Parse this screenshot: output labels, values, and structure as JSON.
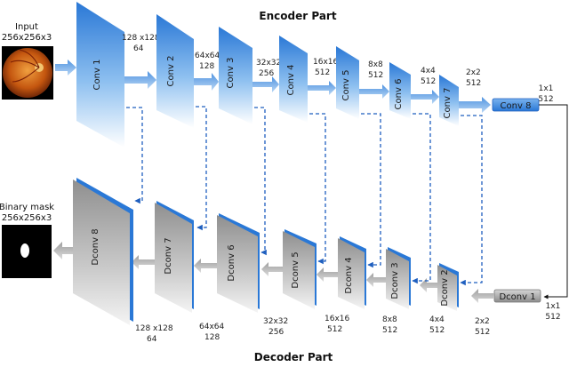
{
  "encoder_title": "Encoder Part",
  "decoder_title": "Decoder Part",
  "input": {
    "label": "Input",
    "size": "256x256x3"
  },
  "output": {
    "label": "Binary mask",
    "size": "256x256x3"
  },
  "encoder_blocks": [
    {
      "name": "Conv 1",
      "res": "128 x128",
      "ch": "64"
    },
    {
      "name": "Conv 2",
      "res": "64x64",
      "ch": "128"
    },
    {
      "name": "Conv 3",
      "res": "32x32",
      "ch": "256"
    },
    {
      "name": "Conv 4",
      "res": "16x16",
      "ch": "512"
    },
    {
      "name": "Conv 5",
      "res": "8x8",
      "ch": "512"
    },
    {
      "name": "Conv 6",
      "res": "4x4",
      "ch": "512"
    },
    {
      "name": "Conv 7",
      "res": "2x2",
      "ch": "512"
    }
  ],
  "bottleneck_encoder": {
    "name": "Conv 8",
    "res": "1x1",
    "ch": "512"
  },
  "bottleneck_decoder": {
    "name": "Dconv 1",
    "res": "1x1",
    "ch": "512"
  },
  "decoder_blocks": [
    {
      "name": "Dconv 8",
      "res": "128 x128",
      "ch": "64"
    },
    {
      "name": "Dconv 7",
      "res": "64x64",
      "ch": "128"
    },
    {
      "name": "Dconv 6",
      "res": "32x32",
      "ch": "256"
    },
    {
      "name": "Dconv 5",
      "res": "16x16",
      "ch": "512"
    },
    {
      "name": "Dconv 4",
      "res": "8x8",
      "ch": "512"
    },
    {
      "name": "Dconv 3",
      "res": "4x4",
      "ch": "512"
    },
    {
      "name": "Dconv 2",
      "res": "2x2",
      "ch": "512"
    }
  ],
  "colors": {
    "encoder_top": "#2a78d6",
    "encoder_bottom": "#ffffff",
    "decoder_fill": "#a6a6a6",
    "decoder_edge": "#2a78d6",
    "arrow_blue": "#6aa6e8",
    "arrow_gray": "#bdbdbd",
    "dash": "#1f5fbf"
  },
  "icons": {
    "input_image": "fundus-retina-icon",
    "output_image": "binary-mask-icon"
  }
}
